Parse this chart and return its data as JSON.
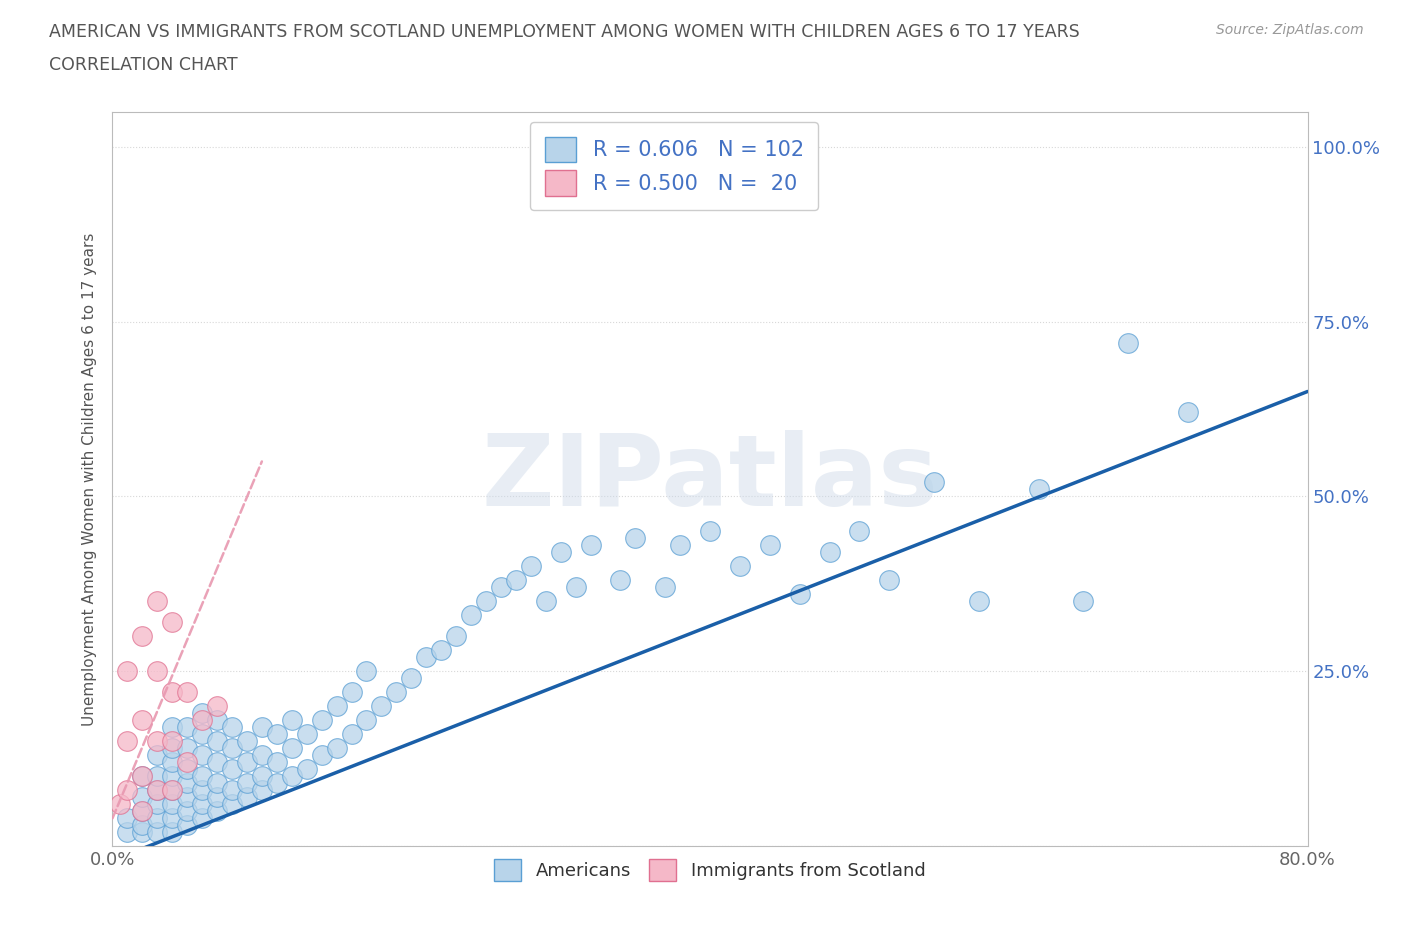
{
  "title_line1": "AMERICAN VS IMMIGRANTS FROM SCOTLAND UNEMPLOYMENT AMONG WOMEN WITH CHILDREN AGES 6 TO 17 YEARS",
  "title_line2": "CORRELATION CHART",
  "source_text": "Source: ZipAtlas.com",
  "ylabel": "Unemployment Among Women with Children Ages 6 to 17 years",
  "xlim": [
    0,
    0.8
  ],
  "ylim": [
    0,
    1.05
  ],
  "xticks": [
    0.0,
    0.1,
    0.2,
    0.3,
    0.4,
    0.5,
    0.6,
    0.7,
    0.8
  ],
  "ytick_positions": [
    0.0,
    0.25,
    0.5,
    0.75,
    1.0
  ],
  "ytick_labels": [
    "",
    "25.0%",
    "50.0%",
    "75.0%",
    "100.0%"
  ],
  "r_american": 0.606,
  "n_american": 102,
  "r_scotland": 0.5,
  "n_scotland": 20,
  "american_color": "#b8d4ea",
  "american_edge": "#5a9fd4",
  "scotland_color": "#f5b8c8",
  "scotland_edge": "#e07090",
  "trend_american_color": "#1a5fa8",
  "trend_scotland_color": "#e898b0",
  "watermark": "ZIPatlas",
  "legend_label_american": "Americans",
  "legend_label_scotland": "Immigrants from Scotland",
  "american_x": [
    0.01,
    0.01,
    0.02,
    0.02,
    0.02,
    0.02,
    0.02,
    0.03,
    0.03,
    0.03,
    0.03,
    0.03,
    0.03,
    0.04,
    0.04,
    0.04,
    0.04,
    0.04,
    0.04,
    0.04,
    0.04,
    0.05,
    0.05,
    0.05,
    0.05,
    0.05,
    0.05,
    0.05,
    0.06,
    0.06,
    0.06,
    0.06,
    0.06,
    0.06,
    0.06,
    0.07,
    0.07,
    0.07,
    0.07,
    0.07,
    0.07,
    0.08,
    0.08,
    0.08,
    0.08,
    0.08,
    0.09,
    0.09,
    0.09,
    0.09,
    0.1,
    0.1,
    0.1,
    0.1,
    0.11,
    0.11,
    0.11,
    0.12,
    0.12,
    0.12,
    0.13,
    0.13,
    0.14,
    0.14,
    0.15,
    0.15,
    0.16,
    0.16,
    0.17,
    0.17,
    0.18,
    0.19,
    0.2,
    0.21,
    0.22,
    0.23,
    0.24,
    0.25,
    0.26,
    0.27,
    0.28,
    0.29,
    0.3,
    0.31,
    0.32,
    0.34,
    0.35,
    0.37,
    0.38,
    0.4,
    0.42,
    0.44,
    0.46,
    0.48,
    0.5,
    0.52,
    0.55,
    0.58,
    0.62,
    0.65,
    0.68,
    0.72
  ],
  "american_y": [
    0.02,
    0.04,
    0.02,
    0.03,
    0.05,
    0.07,
    0.1,
    0.02,
    0.04,
    0.06,
    0.08,
    0.1,
    0.13,
    0.02,
    0.04,
    0.06,
    0.08,
    0.1,
    0.12,
    0.14,
    0.17,
    0.03,
    0.05,
    0.07,
    0.09,
    0.11,
    0.14,
    0.17,
    0.04,
    0.06,
    0.08,
    0.1,
    0.13,
    0.16,
    0.19,
    0.05,
    0.07,
    0.09,
    0.12,
    0.15,
    0.18,
    0.06,
    0.08,
    0.11,
    0.14,
    0.17,
    0.07,
    0.09,
    0.12,
    0.15,
    0.08,
    0.1,
    0.13,
    0.17,
    0.09,
    0.12,
    0.16,
    0.1,
    0.14,
    0.18,
    0.11,
    0.16,
    0.13,
    0.18,
    0.14,
    0.2,
    0.16,
    0.22,
    0.18,
    0.25,
    0.2,
    0.22,
    0.24,
    0.27,
    0.28,
    0.3,
    0.33,
    0.35,
    0.37,
    0.38,
    0.4,
    0.35,
    0.42,
    0.37,
    0.43,
    0.38,
    0.44,
    0.37,
    0.43,
    0.45,
    0.4,
    0.43,
    0.36,
    0.42,
    0.45,
    0.38,
    0.52,
    0.35,
    0.51,
    0.35,
    0.72,
    0.62
  ],
  "scotland_x": [
    0.005,
    0.01,
    0.01,
    0.01,
    0.02,
    0.02,
    0.02,
    0.02,
    0.03,
    0.03,
    0.03,
    0.03,
    0.04,
    0.04,
    0.04,
    0.04,
    0.05,
    0.05,
    0.06,
    0.07
  ],
  "scotland_y": [
    0.06,
    0.08,
    0.15,
    0.25,
    0.05,
    0.1,
    0.18,
    0.3,
    0.08,
    0.15,
    0.25,
    0.35,
    0.08,
    0.15,
    0.22,
    0.32,
    0.12,
    0.22,
    0.18,
    0.2
  ],
  "trend_am_x0": 0.0,
  "trend_am_y0": -0.02,
  "trend_am_x1": 0.8,
  "trend_am_y1": 0.65,
  "trend_sc_x0": 0.0,
  "trend_sc_y0": 0.04,
  "trend_sc_x1": 0.1,
  "trend_sc_y1": 0.55
}
